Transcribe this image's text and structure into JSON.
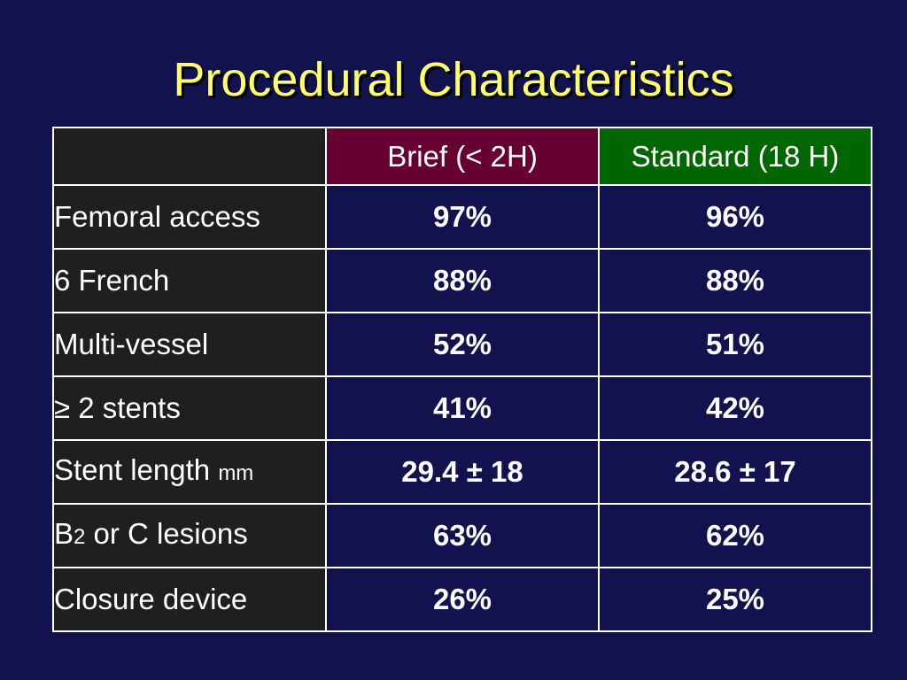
{
  "slide": {
    "title": "Procedural Characteristics"
  },
  "table": {
    "columns": [
      "",
      "Brief (< 2H)",
      "Standard (18 H)"
    ],
    "rows": [
      {
        "label": "Femoral access",
        "brief": "97%",
        "standard": "96%"
      },
      {
        "label": "6 French",
        "brief": "88%",
        "standard": "88%"
      },
      {
        "label": "Multi-vessel",
        "brief": "52%",
        "standard": "51%"
      },
      {
        "label": "≥ 2 stents",
        "brief": "41%",
        "standard": "42%"
      },
      {
        "label_main": "Stent length ",
        "label_unit": "mm",
        "brief": "29.4 ± 18",
        "standard": "28.6 ± 17"
      },
      {
        "label_main": "B",
        "label_sub": "2",
        "label_rest": " or C lesions",
        "brief": "63%",
        "standard": "62%"
      },
      {
        "label": "Closure device",
        "brief": "26%",
        "standard": "25%"
      }
    ]
  },
  "colors": {
    "background": "#12124e",
    "title": "#ffff66",
    "label_cells": "#1f1f1f",
    "brief_header": "#660033",
    "standard_header": "#006600",
    "grid": "#ffffff"
  }
}
